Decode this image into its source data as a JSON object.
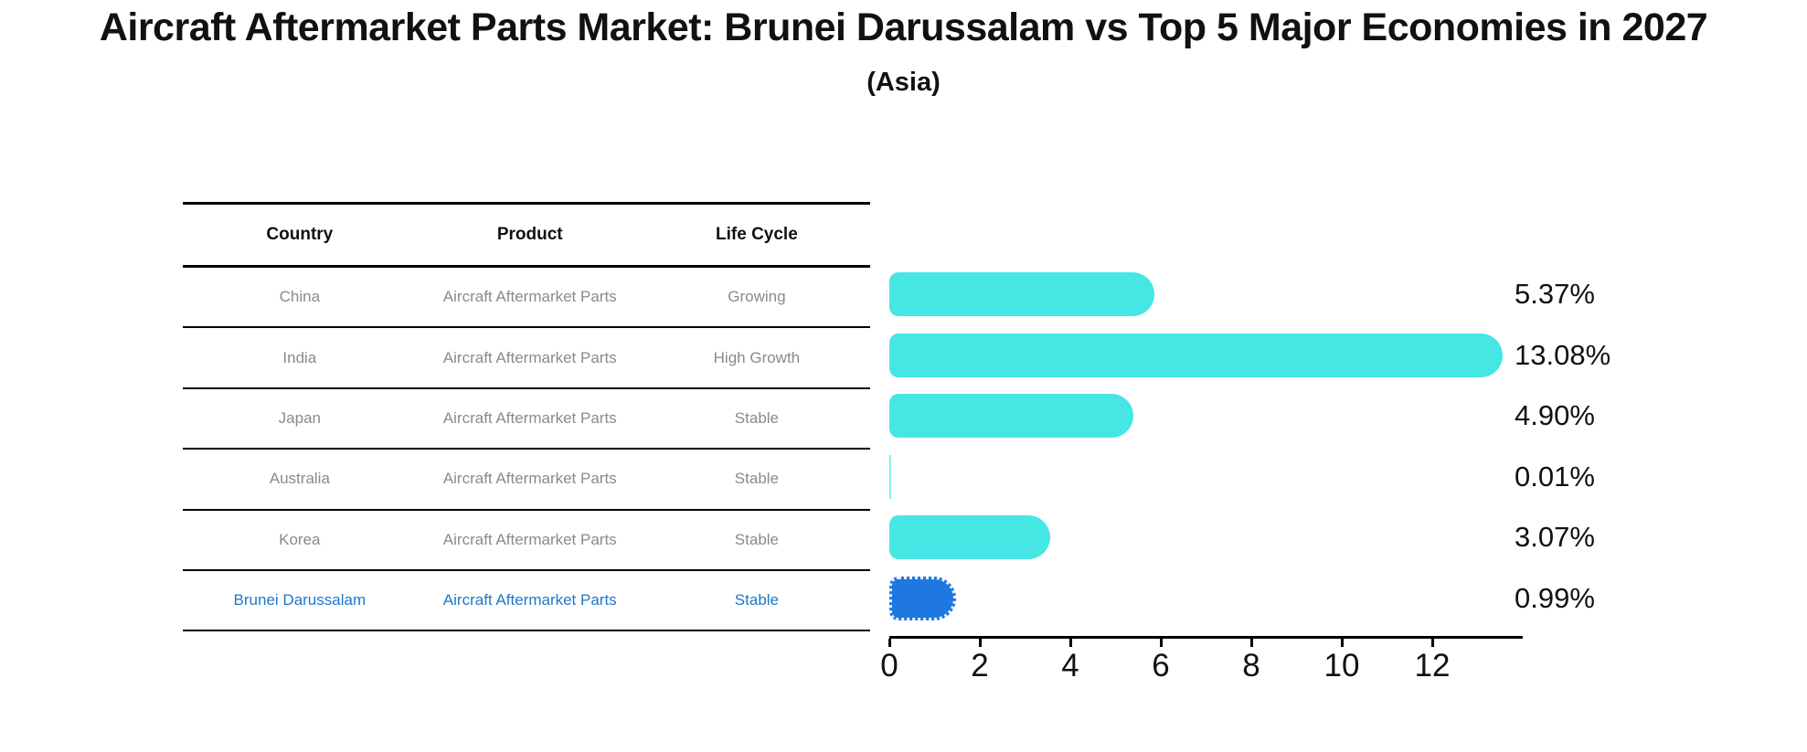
{
  "header": {
    "title": "Aircraft Aftermarket Parts Market: Brunei Darussalam vs Top 5 Major Economies in 2027",
    "subtitle": "(Asia)"
  },
  "table": {
    "columns": [
      "Country",
      "Product",
      "Life Cycle"
    ],
    "rows": [
      {
        "country": "China",
        "product": "Aircraft Aftermarket Parts",
        "life_cycle": "Growing",
        "highlight": false
      },
      {
        "country": "India",
        "product": "Aircraft Aftermarket Parts",
        "life_cycle": "High Growth",
        "highlight": false
      },
      {
        "country": "Japan",
        "product": "Aircraft Aftermarket Parts",
        "life_cycle": "Stable",
        "highlight": false
      },
      {
        "country": "Australia",
        "product": "Aircraft Aftermarket Parts",
        "life_cycle": "Stable",
        "highlight": false
      },
      {
        "country": "Korea",
        "product": "Aircraft Aftermarket Parts",
        "life_cycle": "Stable",
        "highlight": false
      },
      {
        "country": "Brunei Darussalam",
        "product": "Aircraft Aftermarket Parts",
        "life_cycle": "Stable",
        "highlight": true
      }
    ]
  },
  "chart_data": {
    "type": "bar",
    "orientation": "horizontal",
    "title": "Aircraft Aftermarket Parts Market: Brunei Darussalam vs Top 5 Major Economies in 2027",
    "subtitle": "(Asia)",
    "categories": [
      "China",
      "India",
      "Japan",
      "Australia",
      "Korea",
      "Brunei Darussalam"
    ],
    "values": [
      5.37,
      13.08,
      4.9,
      0.01,
      3.07,
      0.99
    ],
    "value_labels": [
      "5.37%",
      "13.08%",
      "4.90%",
      "0.01%",
      "3.07%",
      "0.99%"
    ],
    "xlabel": "",
    "ylabel": "",
    "xticks": [
      0,
      2,
      4,
      6,
      8,
      10,
      12
    ],
    "xlim": [
      0,
      13.8
    ],
    "grid": false,
    "legend": false,
    "highlight_index": 5
  },
  "colors": {
    "bar": "#45E6E4",
    "highlight_bar": "#1F78E0",
    "highlight_text": "#1F77C8",
    "table_text": "#8A8A8A",
    "axis": "#111111"
  }
}
